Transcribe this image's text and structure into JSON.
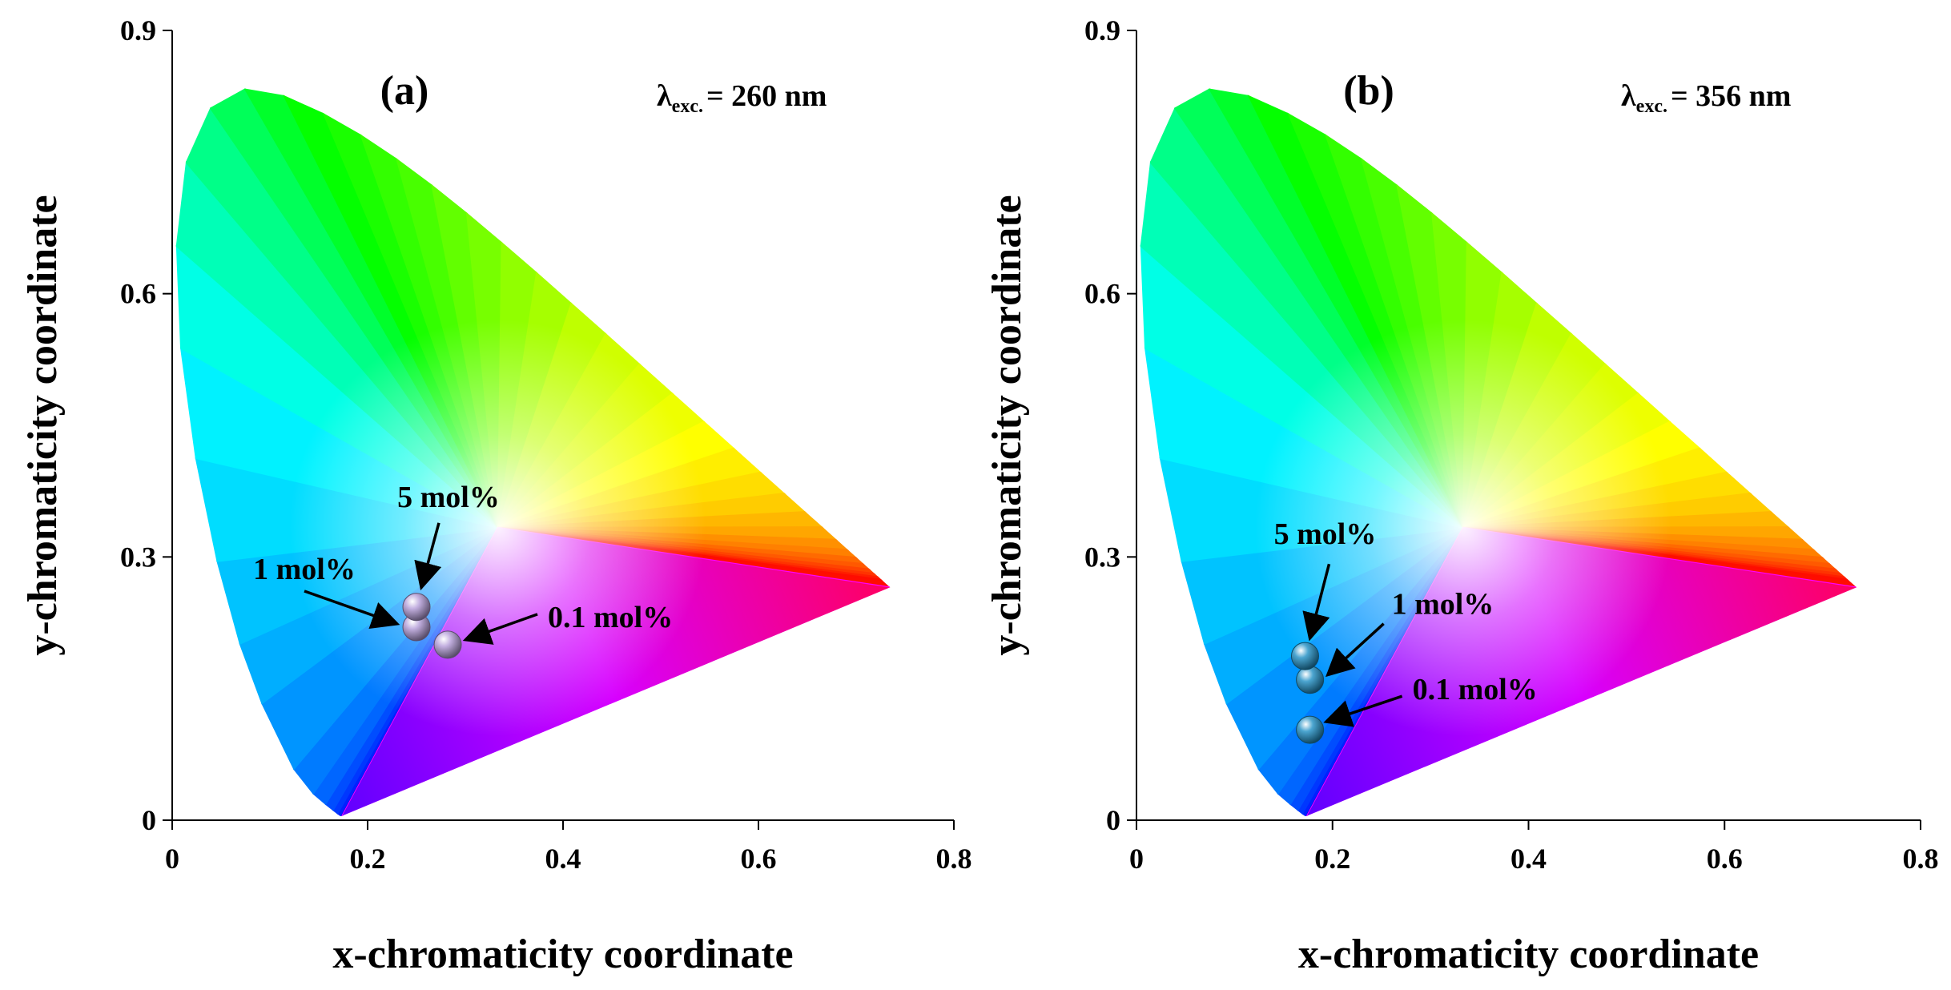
{
  "chart_data": [
    {
      "type": "scatter",
      "panel": "(a)",
      "excitation": {
        "symbol": "λ",
        "subscript": "exc.",
        "value": "= 260 nm"
      },
      "xlabel": "x-chromaticity coordinate",
      "ylabel": "y-chromaticity coordinate",
      "xlim": [
        0,
        0.8
      ],
      "ylim": [
        0,
        0.9
      ],
      "xticks": [
        "0",
        "0.2",
        "0.4",
        "0.6",
        "0.8"
      ],
      "yticks": [
        "0",
        "0.3",
        "0.6",
        "0.9"
      ],
      "background": "CIE 1931 chromaticity diagram",
      "point_color": "#b49cd8",
      "points": [
        {
          "label": "0.1 mol%",
          "x": 0.282,
          "y": 0.2
        },
        {
          "label": "1 mol%",
          "x": 0.25,
          "y": 0.22
        },
        {
          "label": "5 mol%",
          "x": 0.25,
          "y": 0.243
        }
      ]
    },
    {
      "type": "scatter",
      "panel": "(b)",
      "excitation": {
        "symbol": "λ",
        "subscript": "exc.",
        "value": "= 356 nm"
      },
      "xlabel": "x-chromaticity coordinate",
      "ylabel": "y-chromaticity coordinate",
      "xlim": [
        0,
        0.8
      ],
      "ylim": [
        0,
        0.9
      ],
      "xticks": [
        "0",
        "0.2",
        "0.4",
        "0.6",
        "0.8"
      ],
      "yticks": [
        "0",
        "0.3",
        "0.6",
        "0.9"
      ],
      "background": "CIE 1931 chromaticity diagram",
      "point_color": "#1e8fc4",
      "points": [
        {
          "label": "0.1 mol%",
          "x": 0.177,
          "y": 0.103
        },
        {
          "label": "1 mol%",
          "x": 0.177,
          "y": 0.16
        },
        {
          "label": "5 mol%",
          "x": 0.172,
          "y": 0.187
        }
      ]
    }
  ]
}
